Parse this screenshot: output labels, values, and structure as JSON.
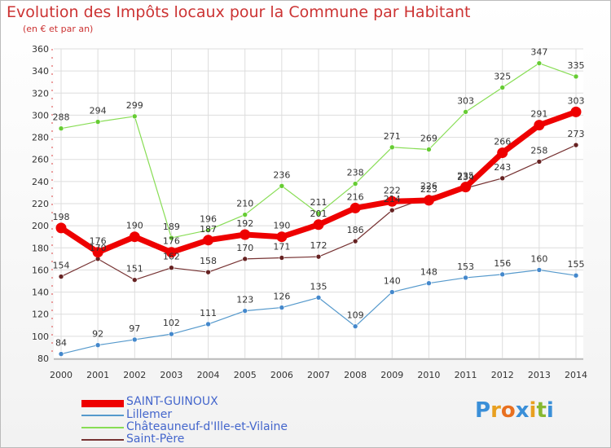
{
  "title": "Evolution des Impôts locaux pour la Commune par Habitant",
  "subtitle": "(en € et par an)",
  "logo": {
    "text": "Proxiti",
    "letters": [
      "P",
      "r",
      "o",
      "x",
      "i",
      "t",
      "i"
    ],
    "colors": [
      "#3a8fd8",
      "#e8a020",
      "#e87020",
      "#3a8fd8",
      "#e8a020",
      "#88b830",
      "#3a8fd8"
    ]
  },
  "chart_data": {
    "type": "line",
    "x": [
      "2000",
      "2001",
      "2002",
      "2003",
      "2004",
      "2005",
      "2006",
      "2007",
      "2008",
      "2009",
      "2010",
      "2011",
      "2012",
      "2013",
      "2014"
    ],
    "ylim": [
      80,
      360
    ],
    "yticks": [
      80,
      100,
      120,
      140,
      160,
      180,
      200,
      220,
      240,
      260,
      280,
      300,
      320,
      340,
      360
    ],
    "series": [
      {
        "name": "Châteauneuf-d'Ille-et-Vilaine",
        "color": "#88dd55",
        "marker": "#66cc33",
        "values": [
          288,
          294,
          299,
          189,
          196,
          210,
          236,
          211,
          238,
          271,
          269,
          303,
          325,
          347,
          335
        ]
      },
      {
        "name": "Lillemer",
        "color": "#5599cc",
        "marker": "#4488cc",
        "values": [
          84,
          92,
          97,
          102,
          111,
          123,
          126,
          135,
          109,
          140,
          148,
          153,
          156,
          160,
          155
        ]
      },
      {
        "name": "Saint-Père",
        "color": "#773333",
        "marker": "#662222",
        "values": [
          154,
          170,
          151,
          162,
          158,
          170,
          171,
          172,
          186,
          214,
          226,
          234,
          243,
          258,
          273
        ]
      },
      {
        "name": "SAINT-GUINOUX",
        "color": "#ee0000",
        "marker": "#ee0000",
        "values": [
          198,
          176,
          190,
          176,
          187,
          192,
          190,
          201,
          216,
          222,
          223,
          235,
          266,
          291,
          303
        ]
      }
    ],
    "legend_order": [
      "SAINT-GUINOUX",
      "Lillemer",
      "Châteauneuf-d'Ille-et-Vilaine",
      "Saint-Père"
    ]
  }
}
